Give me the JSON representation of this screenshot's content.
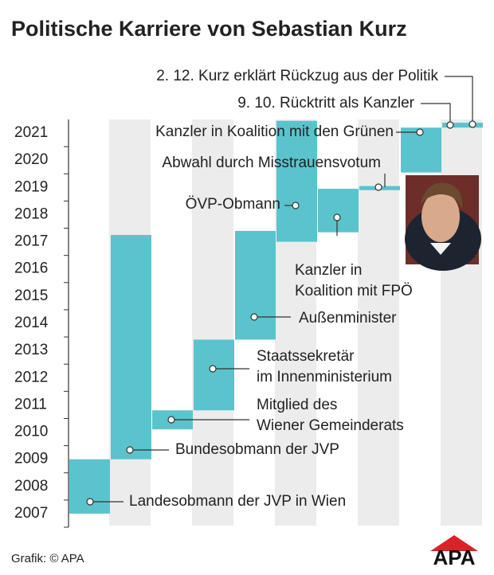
{
  "chart_data": {
    "type": "timeline",
    "title": "Politische Karriere von Sebastian Kurz",
    "source": "Grafik: © APA",
    "logo": "APA",
    "color": "#5bc3cc",
    "ylim": [
      2007,
      2022
    ],
    "yticks": [
      2007,
      2008,
      2009,
      2010,
      2011,
      2012,
      2013,
      2014,
      2015,
      2016,
      2017,
      2018,
      2019,
      2020,
      2021
    ],
    "bars": [
      {
        "start": 2007.5,
        "end": 2009.5,
        "annotations": [
          [
            "Landesobmann der JVP in Wien"
          ]
        ]
      },
      {
        "start": 2009.5,
        "end": 2017.75,
        "annotations": [
          [
            "Bundesobmann der JVP"
          ]
        ]
      },
      {
        "start": 2010.6,
        "end": 2011.3,
        "annotations": [
          [
            "Mitglied des",
            "Wiener Gemeinderats"
          ]
        ]
      },
      {
        "start": 2011.3,
        "end": 2013.9,
        "annotations": [
          [
            "Staatssekretär",
            "im Innenministerium"
          ]
        ]
      },
      {
        "start": 2013.9,
        "end": 2017.9,
        "annotations": [
          [
            "Außenminister"
          ]
        ]
      },
      {
        "start": 2017.5,
        "end": 2021.95,
        "annotations": [
          [
            "ÖVP-Obmann"
          ]
        ]
      },
      {
        "start": 2017.85,
        "end": 2019.45,
        "annotations": [
          [
            "Kanzler in",
            "Koalition mit FPÖ"
          ]
        ]
      },
      {
        "start": 2019.4,
        "end": 2019.55,
        "annotations": [
          [
            "Abwahl durch Misstrauensvotum"
          ]
        ]
      },
      {
        "start": 2020.05,
        "end": 2021.7,
        "annotations": [
          [
            "Kanzler in Koalition mit den Grünen"
          ]
        ]
      },
      {
        "start": 2021.7,
        "end": 2021.88,
        "annotations": [
          [
            "9. 10. Rücktritt als Kanzler"
          ],
          [
            "2. 12. Kurz erklärt Rückzug aus der Politik"
          ]
        ]
      }
    ]
  }
}
